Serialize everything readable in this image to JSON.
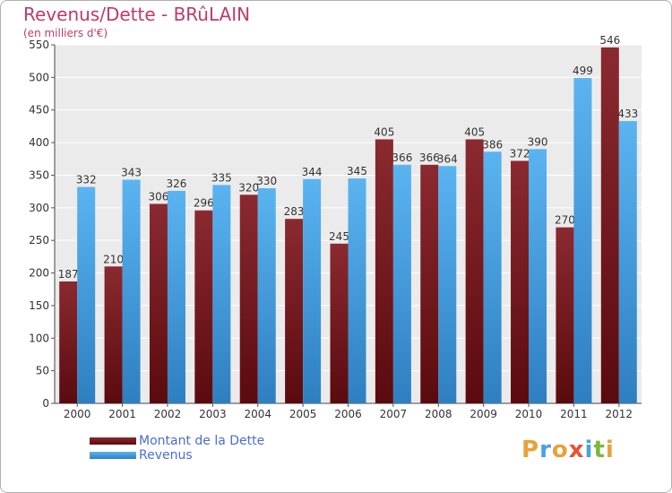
{
  "header": {
    "title": "Revenus/Dette - BRûLAIN",
    "subtitle": "(en milliers d'€)"
  },
  "logo": {
    "text": "Proxiti",
    "letters": [
      {
        "ch": "P",
        "color": "#e8a23a"
      },
      {
        "ch": "r",
        "color": "#4aa2d8"
      },
      {
        "ch": "o",
        "color": "#e8a23a"
      },
      {
        "ch": "x",
        "color": "#e8503a"
      },
      {
        "ch": "i",
        "color": "#4aa2d8"
      },
      {
        "ch": "t",
        "color": "#7ab83a"
      },
      {
        "ch": "i",
        "color": "#e8a23a"
      }
    ]
  },
  "colors": {
    "debt": "#7a1a1e",
    "revenue": "#4aa3e6",
    "title": "#c0396b",
    "legend_text": "#4b6cd8",
    "axis_text": "#333333",
    "grid": "#ffffff",
    "plot_bg": "#ebebeb"
  },
  "chart_data": {
    "type": "bar",
    "title": "Revenus/Dette - BRûLAIN",
    "subtitle": "(en milliers d'€)",
    "categories": [
      "2000",
      "2001",
      "2002",
      "2003",
      "2004",
      "2005",
      "2006",
      "2007",
      "2008",
      "2009",
      "2010",
      "2011",
      "2012"
    ],
    "series": [
      {
        "name": "Montant de la Dette",
        "values": [
          187,
          210,
          306,
          296,
          320,
          283,
          245,
          405,
          366,
          405,
          372,
          270,
          546
        ]
      },
      {
        "name": "Revenus",
        "values": [
          332,
          343,
          326,
          335,
          330,
          344,
          345,
          366,
          364,
          386,
          390,
          499,
          433
        ]
      }
    ],
    "ylim": [
      0,
      550
    ],
    "yticks": [
      0,
      50,
      100,
      150,
      200,
      250,
      300,
      350,
      400,
      450,
      500,
      550
    ],
    "grid": true,
    "legend_position": "bottom-left"
  }
}
